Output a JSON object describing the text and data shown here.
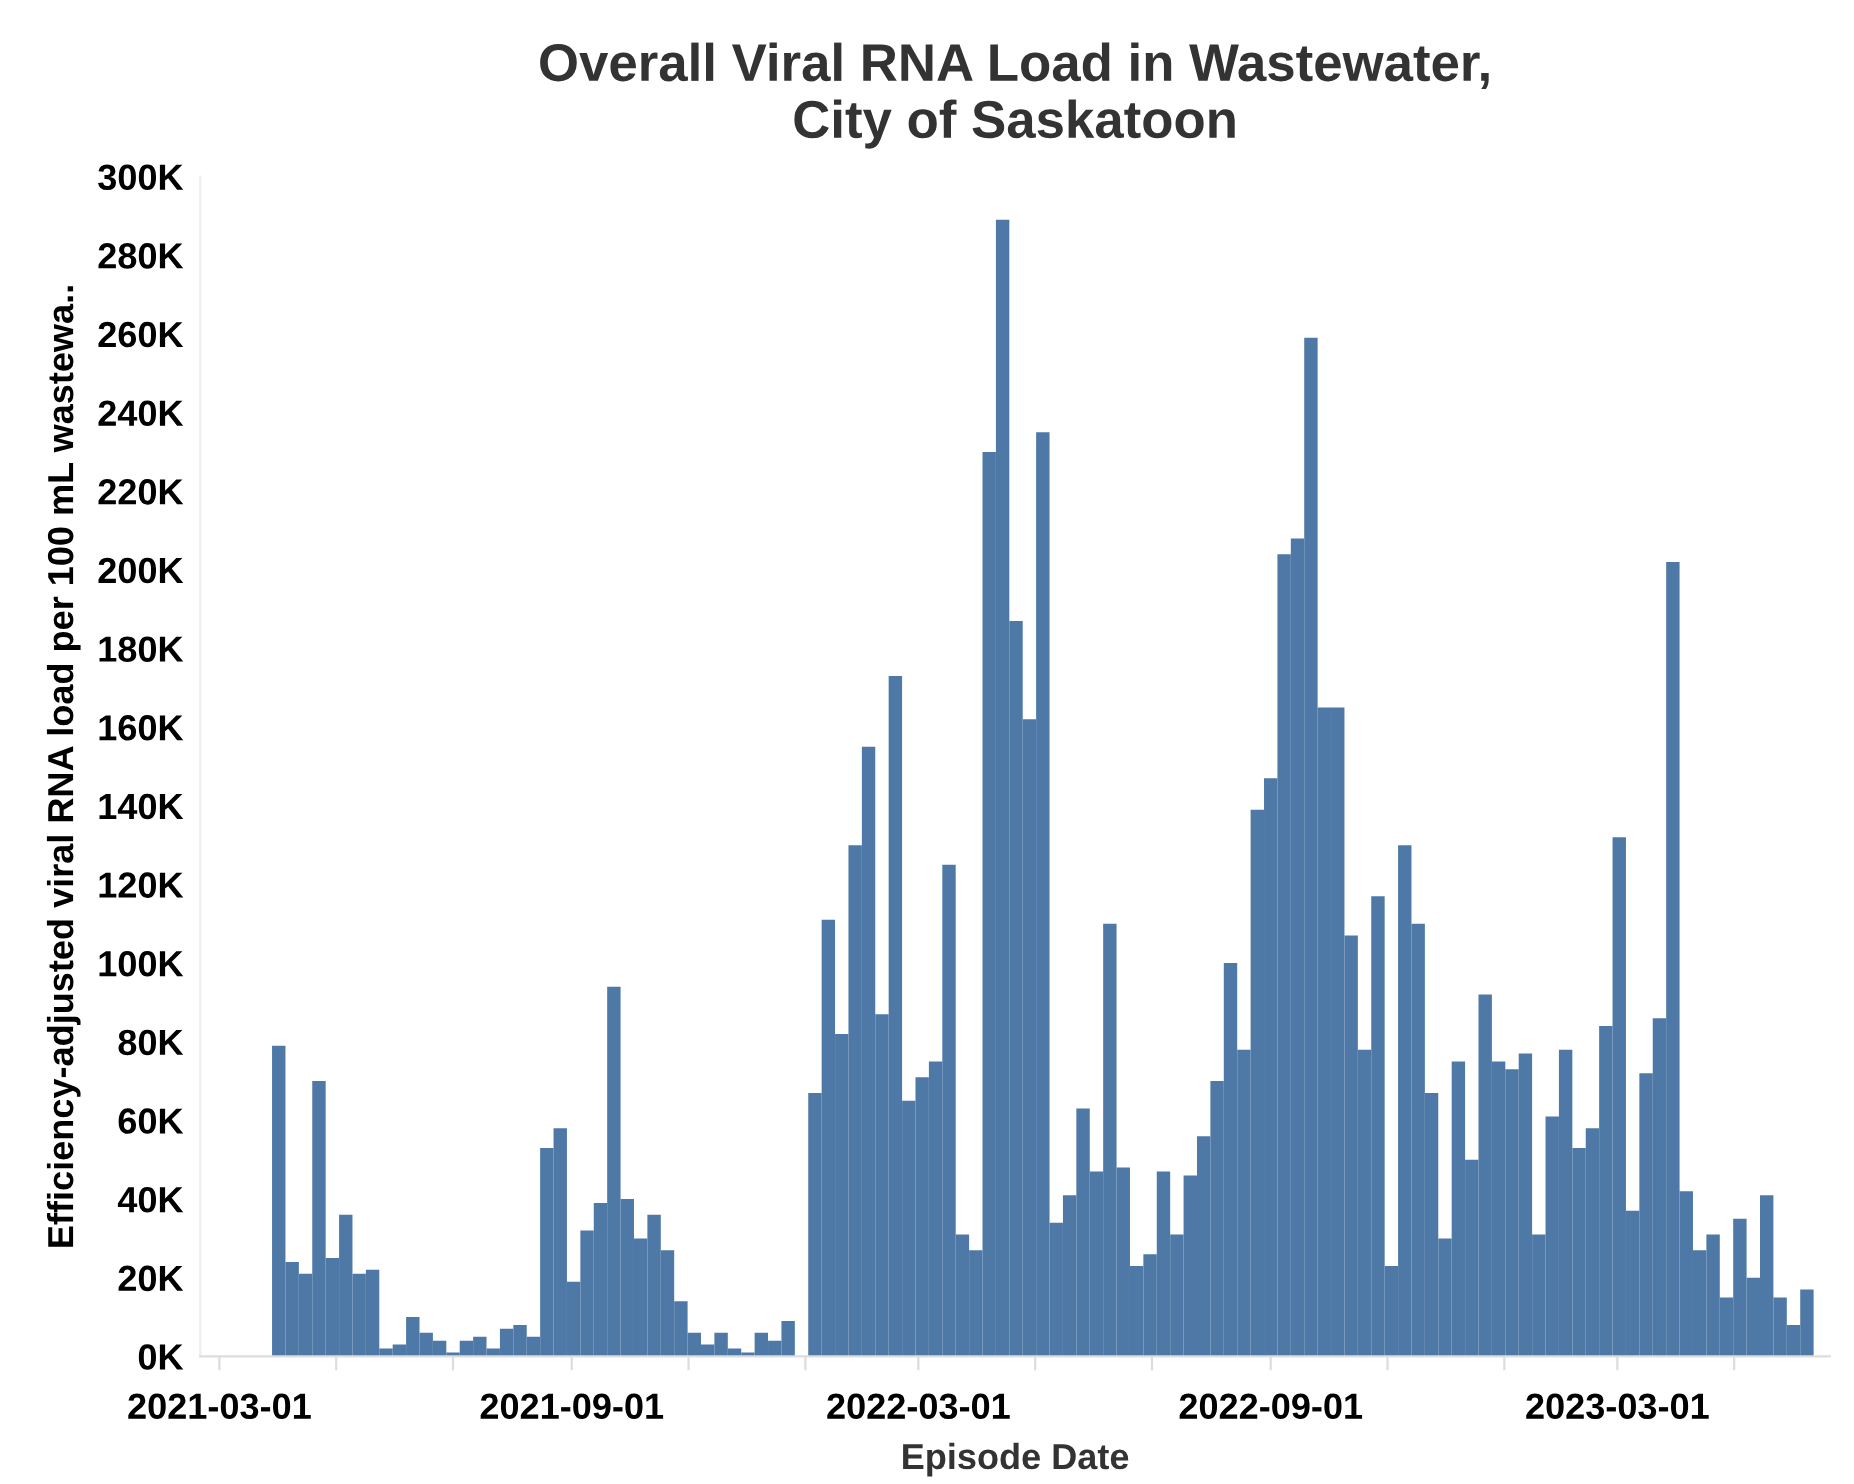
{
  "chart_data": {
    "type": "bar",
    "title": "Overall Viral RNA Load in Wastewater,\nCity of Saskatoon",
    "xlabel": "Episode Date",
    "ylabel": "Efficiency-adjusted viral RNA load per 100 mL wastewa..",
    "x": [
      "2021-04-01",
      "2021-04-08",
      "2021-04-15",
      "2021-04-22",
      "2021-04-29",
      "2021-05-06",
      "2021-05-13",
      "2021-05-20",
      "2021-05-27",
      "2021-06-03",
      "2021-06-10",
      "2021-06-17",
      "2021-06-24",
      "2021-07-01",
      "2021-07-08",
      "2021-07-15",
      "2021-07-22",
      "2021-07-29",
      "2021-08-05",
      "2021-08-12",
      "2021-08-19",
      "2021-08-26",
      "2021-09-02",
      "2021-09-09",
      "2021-09-16",
      "2021-09-23",
      "2021-09-30",
      "2021-10-07",
      "2021-10-14",
      "2021-10-21",
      "2021-10-28",
      "2021-11-04",
      "2021-11-11",
      "2021-11-18",
      "2021-11-25",
      "2021-12-02",
      "2021-12-09",
      "2021-12-16",
      "2021-12-23",
      "2021-12-30",
      "2022-01-06",
      "2022-01-13",
      "2022-01-20",
      "2022-01-27",
      "2022-02-03",
      "2022-02-10",
      "2022-02-17",
      "2022-02-24",
      "2022-03-03",
      "2022-03-10",
      "2022-03-17",
      "2022-03-24",
      "2022-03-31",
      "2022-04-07",
      "2022-04-14",
      "2022-04-21",
      "2022-04-28",
      "2022-05-05",
      "2022-05-12",
      "2022-05-19",
      "2022-05-26",
      "2022-06-02",
      "2022-06-09",
      "2022-06-16",
      "2022-06-23",
      "2022-06-30",
      "2022-07-07",
      "2022-07-14",
      "2022-07-21",
      "2022-07-28",
      "2022-08-04",
      "2022-08-11",
      "2022-08-18",
      "2022-08-25",
      "2022-09-01",
      "2022-09-08",
      "2022-09-15",
      "2022-09-22",
      "2022-09-29",
      "2022-10-06",
      "2022-10-13",
      "2022-10-20",
      "2022-10-27",
      "2022-11-03",
      "2022-11-10",
      "2022-11-17",
      "2022-11-24",
      "2022-12-01",
      "2022-12-08",
      "2022-12-15",
      "2022-12-22",
      "2022-12-29",
      "2023-01-05",
      "2023-01-12",
      "2023-01-19",
      "2023-01-26",
      "2023-02-02",
      "2023-02-09",
      "2023-02-16",
      "2023-02-23",
      "2023-03-02",
      "2023-03-09",
      "2023-03-16",
      "2023-03-23",
      "2023-03-30",
      "2023-04-06",
      "2023-04-13",
      "2023-04-20",
      "2023-04-27",
      "2023-05-04",
      "2023-05-11",
      "2023-05-18",
      "2023-05-25",
      "2023-06-01",
      "2023-06-08"
    ],
    "values": [
      79000,
      24000,
      21000,
      70000,
      25000,
      36000,
      21000,
      22000,
      2000,
      3000,
      10000,
      6000,
      4000,
      1000,
      4000,
      5000,
      2000,
      7000,
      8000,
      5000,
      53000,
      58000,
      19000,
      32000,
      39000,
      94000,
      40000,
      30000,
      36000,
      27000,
      14000,
      6000,
      3000,
      6000,
      2000,
      1000,
      6000,
      4000,
      9000,
      null,
      67000,
      111000,
      82000,
      130000,
      155000,
      87000,
      173000,
      65000,
      71000,
      75000,
      125000,
      31000,
      27000,
      230000,
      289000,
      187000,
      162000,
      235000,
      34000,
      41000,
      63000,
      47000,
      110000,
      48000,
      23000,
      26000,
      47000,
      31000,
      46000,
      56000,
      70000,
      100000,
      78000,
      139000,
      147000,
      204000,
      208000,
      259000,
      165000,
      165000,
      107000,
      78000,
      117000,
      23000,
      130000,
      110000,
      67000,
      30000,
      75000,
      50000,
      92000,
      75000,
      73000,
      77000,
      31000,
      61000,
      78000,
      53000,
      58000,
      84000,
      132000,
      37000,
      72000,
      86000,
      202000,
      42000,
      27000,
      31000,
      15000,
      35000,
      20000,
      41000,
      15000,
      8000,
      17000
    ],
    "color": "#4e79a7",
    "xlim": [
      "2021-02-19",
      "2023-06-20"
    ],
    "xticks": [
      {
        "value": "2021-03-01",
        "label": "2021-03-01"
      },
      {
        "value": "2021-05-01",
        "label": null
      },
      {
        "value": "2021-07-01",
        "label": null
      },
      {
        "value": "2021-09-01",
        "label": "2021-09-01"
      },
      {
        "value": "2021-11-01",
        "label": null
      },
      {
        "value": "2022-01-01",
        "label": null
      },
      {
        "value": "2022-03-01",
        "label": "2022-03-01"
      },
      {
        "value": "2022-05-01",
        "label": null
      },
      {
        "value": "2022-07-01",
        "label": null
      },
      {
        "value": "2022-09-01",
        "label": "2022-09-01"
      },
      {
        "value": "2022-11-01",
        "label": null
      },
      {
        "value": "2023-01-01",
        "label": null
      },
      {
        "value": "2023-03-01",
        "label": "2023-03-01"
      },
      {
        "value": "2023-05-01",
        "label": null
      }
    ],
    "ylim": [
      0,
      300000
    ],
    "yticks": [
      {
        "value": 0,
        "label": "0K"
      },
      {
        "value": 20000,
        "label": "20K"
      },
      {
        "value": 40000,
        "label": "40K"
      },
      {
        "value": 60000,
        "label": "60K"
      },
      {
        "value": 80000,
        "label": "80K"
      },
      {
        "value": 100000,
        "label": "100K"
      },
      {
        "value": 120000,
        "label": "120K"
      },
      {
        "value": 140000,
        "label": "140K"
      },
      {
        "value": 160000,
        "label": "160K"
      },
      {
        "value": 180000,
        "label": "180K"
      },
      {
        "value": 200000,
        "label": "200K"
      },
      {
        "value": 220000,
        "label": "220K"
      },
      {
        "value": 240000,
        "label": "240K"
      },
      {
        "value": 260000,
        "label": "260K"
      },
      {
        "value": 280000,
        "label": "280K"
      },
      {
        "value": 300000,
        "label": "300K"
      }
    ],
    "grid": false
  }
}
